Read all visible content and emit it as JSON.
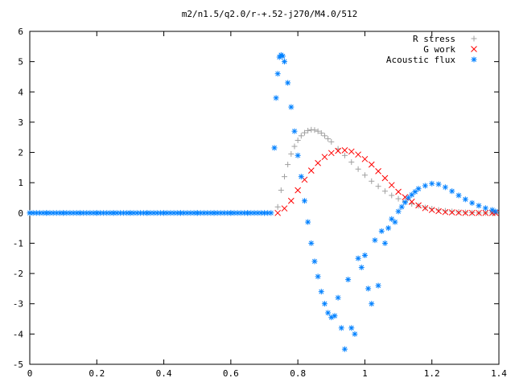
{
  "chart_data": {
    "type": "scatter",
    "title": "m2/n1.5/q2.0/r-+.52-j270/M4.0/512",
    "xlabel": "",
    "ylabel": "",
    "xlim": [
      0,
      1.4
    ],
    "ylim": [
      -5,
      6
    ],
    "xticks": [
      0,
      0.2,
      0.4,
      0.6,
      0.8,
      1,
      1.2,
      1.4
    ],
    "xtick_labels": [
      "0",
      "0.2",
      "0.4",
      "0.6",
      "0.8",
      "1",
      "1.2",
      "1.4"
    ],
    "yticks": [
      -5,
      -4,
      -3,
      -2,
      -1,
      0,
      1,
      2,
      3,
      4,
      5,
      6
    ],
    "ytick_labels": [
      "-5",
      "-4",
      "-3",
      "-2",
      "-1",
      "0",
      "1",
      "2",
      "3",
      "4",
      "5",
      "6"
    ],
    "grid": false,
    "legend_position": "top-right",
    "series": [
      {
        "name": "R stress",
        "marker": "+",
        "color": "#a0a0a0",
        "x": [
          0.74,
          0.75,
          0.76,
          0.77,
          0.78,
          0.79,
          0.8,
          0.81,
          0.82,
          0.83,
          0.84,
          0.85,
          0.86,
          0.87,
          0.88,
          0.89,
          0.9,
          0.92,
          0.94,
          0.96,
          0.98,
          1.0,
          1.02,
          1.04,
          1.06,
          1.08,
          1.1,
          1.12,
          1.14,
          1.16,
          1.18,
          1.2,
          1.22,
          1.24,
          1.26,
          1.28,
          1.3,
          1.32,
          1.34,
          1.36,
          1.38,
          1.39
        ],
        "y": [
          0.2,
          0.75,
          1.2,
          1.6,
          1.95,
          2.2,
          2.4,
          2.55,
          2.65,
          2.72,
          2.75,
          2.74,
          2.7,
          2.64,
          2.55,
          2.45,
          2.35,
          2.12,
          1.9,
          1.68,
          1.45,
          1.25,
          1.05,
          0.88,
          0.72,
          0.58,
          0.47,
          0.38,
          0.3,
          0.24,
          0.18,
          0.14,
          0.1,
          0.07,
          0.05,
          0.03,
          0.02,
          0.01,
          0.0,
          0.0,
          0.0,
          0.0
        ]
      },
      {
        "name": "G work",
        "marker": "x",
        "color": "#ff0000",
        "x": [
          0.74,
          0.76,
          0.78,
          0.8,
          0.82,
          0.84,
          0.86,
          0.88,
          0.9,
          0.92,
          0.94,
          0.96,
          0.98,
          1.0,
          1.02,
          1.04,
          1.06,
          1.08,
          1.1,
          1.12,
          1.14,
          1.16,
          1.18,
          1.2,
          1.22,
          1.24,
          1.26,
          1.28,
          1.3,
          1.32,
          1.34,
          1.36,
          1.38,
          1.39
        ],
        "y": [
          0.0,
          0.15,
          0.4,
          0.75,
          1.1,
          1.4,
          1.65,
          1.85,
          1.98,
          2.05,
          2.07,
          2.03,
          1.93,
          1.78,
          1.6,
          1.38,
          1.15,
          0.92,
          0.7,
          0.52,
          0.37,
          0.25,
          0.16,
          0.1,
          0.06,
          0.03,
          0.02,
          0.01,
          0.0,
          0.0,
          0.0,
          0.0,
          0.0,
          0.0
        ]
      },
      {
        "name": "Acoustic flux",
        "marker": "*",
        "color": "#0080ff",
        "x": [
          0.0,
          0.05,
          0.1,
          0.15,
          0.2,
          0.25,
          0.3,
          0.35,
          0.4,
          0.45,
          0.5,
          0.55,
          0.6,
          0.65,
          0.7,
          0.73,
          0.735,
          0.74,
          0.745,
          0.75,
          0.755,
          0.76,
          0.77,
          0.78,
          0.79,
          0.8,
          0.81,
          0.82,
          0.83,
          0.84,
          0.85,
          0.86,
          0.87,
          0.88,
          0.89,
          0.9,
          0.91,
          0.92,
          0.93,
          0.94,
          0.95,
          0.96,
          0.97,
          0.98,
          0.99,
          1.0,
          1.01,
          1.02,
          1.03,
          1.04,
          1.05,
          1.06,
          1.07,
          1.08,
          1.09,
          1.1,
          1.11,
          1.12,
          1.13,
          1.14,
          1.15,
          1.16,
          1.18,
          1.2,
          1.22,
          1.24,
          1.26,
          1.28,
          1.3,
          1.32,
          1.34,
          1.36,
          1.38,
          1.39
        ],
        "y": [
          0.0,
          0.0,
          0.0,
          0.0,
          0.0,
          0.0,
          0.0,
          0.0,
          0.0,
          0.0,
          0.0,
          0.0,
          0.0,
          0.0,
          0.0,
          2.15,
          3.8,
          4.6,
          5.15,
          5.22,
          5.18,
          5.0,
          4.3,
          3.5,
          2.7,
          1.9,
          1.2,
          0.4,
          -0.3,
          -1.0,
          -1.6,
          -2.1,
          -2.6,
          -3.0,
          -3.3,
          -3.45,
          -3.4,
          -2.8,
          -3.8,
          -4.5,
          -2.2,
          -3.8,
          -4.0,
          -1.5,
          -1.8,
          -1.4,
          -2.5,
          -3.0,
          -0.9,
          -2.4,
          -0.6,
          -1.0,
          -0.5,
          -0.2,
          -0.3,
          0.05,
          0.2,
          0.35,
          0.5,
          0.6,
          0.7,
          0.8,
          0.9,
          0.97,
          0.95,
          0.85,
          0.72,
          0.58,
          0.45,
          0.33,
          0.24,
          0.16,
          0.1,
          0.05
        ]
      }
    ]
  }
}
